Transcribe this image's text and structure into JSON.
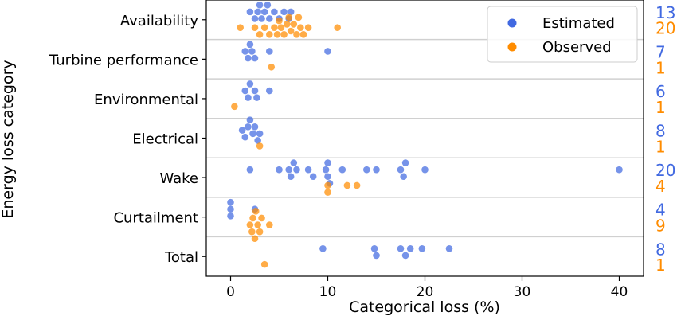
{
  "chart_data": {
    "type": "scatter",
    "xlabel": "Categorical loss (%)",
    "ylabel": "Energy loss category",
    "xlim": [
      -2.5,
      42.5
    ],
    "xticks": [
      0,
      10,
      20,
      30,
      40
    ],
    "grid": "horizontal separators between categories",
    "legend": {
      "placement": "top-right"
    },
    "colors": {
      "Estimated": "#4169e1",
      "Observed": "#ff8c00"
    },
    "categories": [
      "Availability",
      "Turbine performance",
      "Environmental",
      "Electrical",
      "Wake",
      "Curtailment",
      "Total"
    ],
    "series": [
      {
        "name": "Estimated",
        "counts": [
          "13",
          "7",
          "6",
          "8",
          "20",
          "4",
          "8"
        ],
        "values": [
          [
            2.5,
            2.8,
            3.0,
            3.2,
            3.5,
            4.0,
            4.5,
            5.0,
            5.5,
            6.0,
            6.2,
            2.0,
            3.8
          ],
          [
            1.5,
            1.8,
            2.0,
            2.2,
            2.5,
            4.0,
            10.0
          ],
          [
            1.5,
            1.8,
            2.0,
            2.5,
            2.7,
            4.0
          ],
          [
            1.2,
            1.5,
            1.8,
            2.0,
            2.3,
            2.5,
            2.8,
            3.0
          ],
          [
            2.0,
            5.0,
            6.0,
            6.2,
            6.5,
            6.8,
            8.0,
            8.5,
            9.8,
            10.0,
            10.2,
            10.0,
            11.5,
            14.0,
            15.0,
            17.5,
            17.8,
            18.0,
            20.0,
            40.0
          ],
          [
            0.0,
            0.0,
            0.0,
            2.5
          ],
          [
            9.5,
            14.8,
            15.0,
            17.5,
            18.0,
            18.5,
            19.7,
            22.5
          ]
        ]
      },
      {
        "name": "Observed",
        "counts": [
          "20",
          "1",
          "1",
          "1",
          "4",
          "9",
          "1"
        ],
        "values": [
          [
            1.0,
            2.5,
            3.0,
            3.5,
            4.0,
            4.5,
            4.8,
            5.0,
            5.2,
            5.5,
            5.8,
            6.0,
            6.2,
            6.5,
            6.8,
            7.0,
            7.2,
            7.5,
            8.0,
            11.0
          ],
          [
            4.2
          ],
          [
            0.4
          ],
          [
            3.0
          ],
          [
            10.0,
            10.0,
            12.0,
            13.0
          ],
          [
            2.0,
            2.2,
            2.3,
            2.5,
            2.6,
            2.8,
            3.0,
            3.2,
            4.0
          ],
          [
            3.5
          ]
        ]
      }
    ]
  }
}
